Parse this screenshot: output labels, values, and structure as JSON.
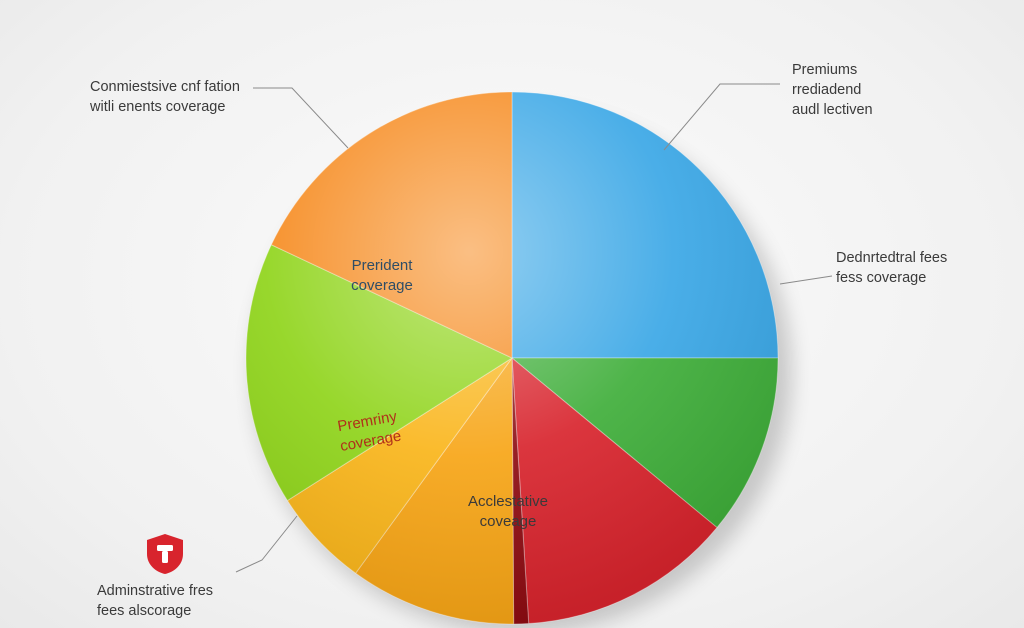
{
  "chart_data": {
    "type": "pie",
    "slices": [
      {
        "label": [
          "Prerident",
          "coverage"
        ],
        "value": 25.0,
        "color": "#3aa7e6",
        "label_color": "#2f4d66"
      },
      {
        "label": [],
        "value": 11.0,
        "color": "#3fae3a",
        "label_color": "#2f2f2f"
      },
      {
        "label": [],
        "value": 13.0,
        "color": "#d8242d",
        "label_color": "#2f2f2f"
      },
      {
        "label": [],
        "value": 0.9,
        "color": "#8e0c12",
        "label_color": "#2f2f2f"
      },
      {
        "label": [],
        "value": 10.1,
        "color": "#f7a516",
        "label_color": "#2f2f2f"
      },
      {
        "label": [],
        "value": 6.0,
        "color": "#f9b51a",
        "label_color": "#2f2f2f"
      },
      {
        "label": [
          "Acclestative",
          "coveage"
        ],
        "value": 16.0,
        "color": "#8fd41a",
        "label_color": "#3a3a3a"
      },
      {
        "label": [
          "Premriny",
          "coverage"
        ],
        "value": 18.0,
        "color": "#f68a1e",
        "label_color": "#b0301a"
      }
    ],
    "callouts": [
      {
        "lines": [
          "Conmiestsive cnf fation",
          "witli enents coverage"
        ]
      },
      {
        "lines": [
          "Premiums",
          "rrediadend",
          "audl lectiven"
        ]
      },
      {
        "lines": [
          "Dednrtedtral fees",
          "fess coverage"
        ]
      },
      {
        "lines": [
          "Adminstrative fres",
          "fees alscorage"
        ]
      }
    ],
    "title": "",
    "legend": "none"
  },
  "icons": {
    "badge": "shield-icon",
    "badge_color": "#d8242d"
  }
}
